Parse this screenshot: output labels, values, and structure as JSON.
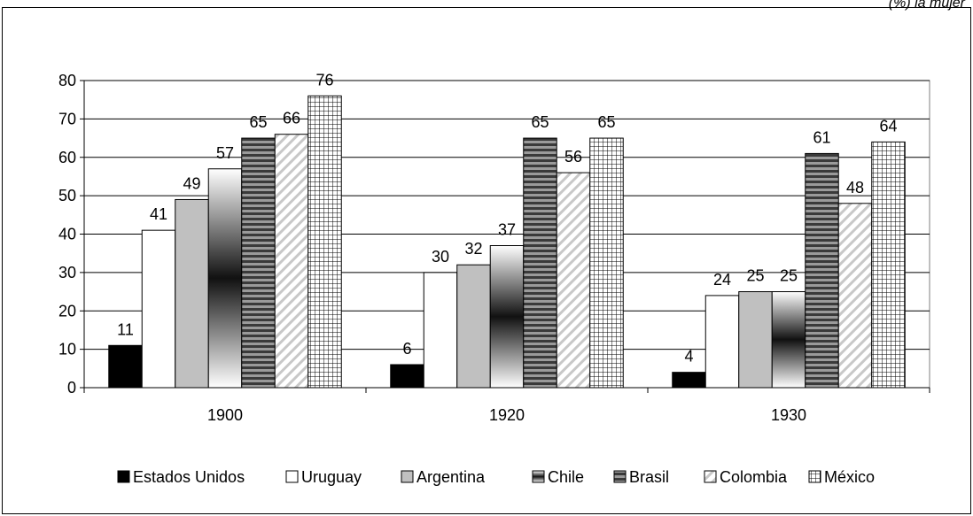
{
  "header_fragment": "(%) la mujer",
  "chart_data": {
    "type": "bar",
    "categories": [
      "1900",
      "1920",
      "1930"
    ],
    "series": [
      {
        "name": "Estados Unidos",
        "values": [
          11,
          6,
          4
        ],
        "pattern": "solid-black"
      },
      {
        "name": "Uruguay",
        "values": [
          41,
          30,
          24
        ],
        "pattern": "white"
      },
      {
        "name": "Argentina",
        "values": [
          49,
          32,
          25
        ],
        "pattern": "gray"
      },
      {
        "name": "Chile",
        "values": [
          57,
          37,
          25
        ],
        "pattern": "gradient"
      },
      {
        "name": "Brasil",
        "values": [
          65,
          65,
          61
        ],
        "pattern": "hlines"
      },
      {
        "name": "Colombia",
        "values": [
          66,
          56,
          48
        ],
        "pattern": "diagonal"
      },
      {
        "name": "México",
        "values": [
          76,
          65,
          64
        ],
        "pattern": "grid"
      }
    ],
    "ylim": [
      0,
      80
    ],
    "yticks": [
      0,
      10,
      20,
      30,
      40,
      50,
      60,
      70,
      80
    ],
    "grid": true,
    "legend": "bottom",
    "colors": {
      "plot_border": "#7f7f7f",
      "gridline": "#000000",
      "gray_fill": "#c0c0c0"
    }
  }
}
